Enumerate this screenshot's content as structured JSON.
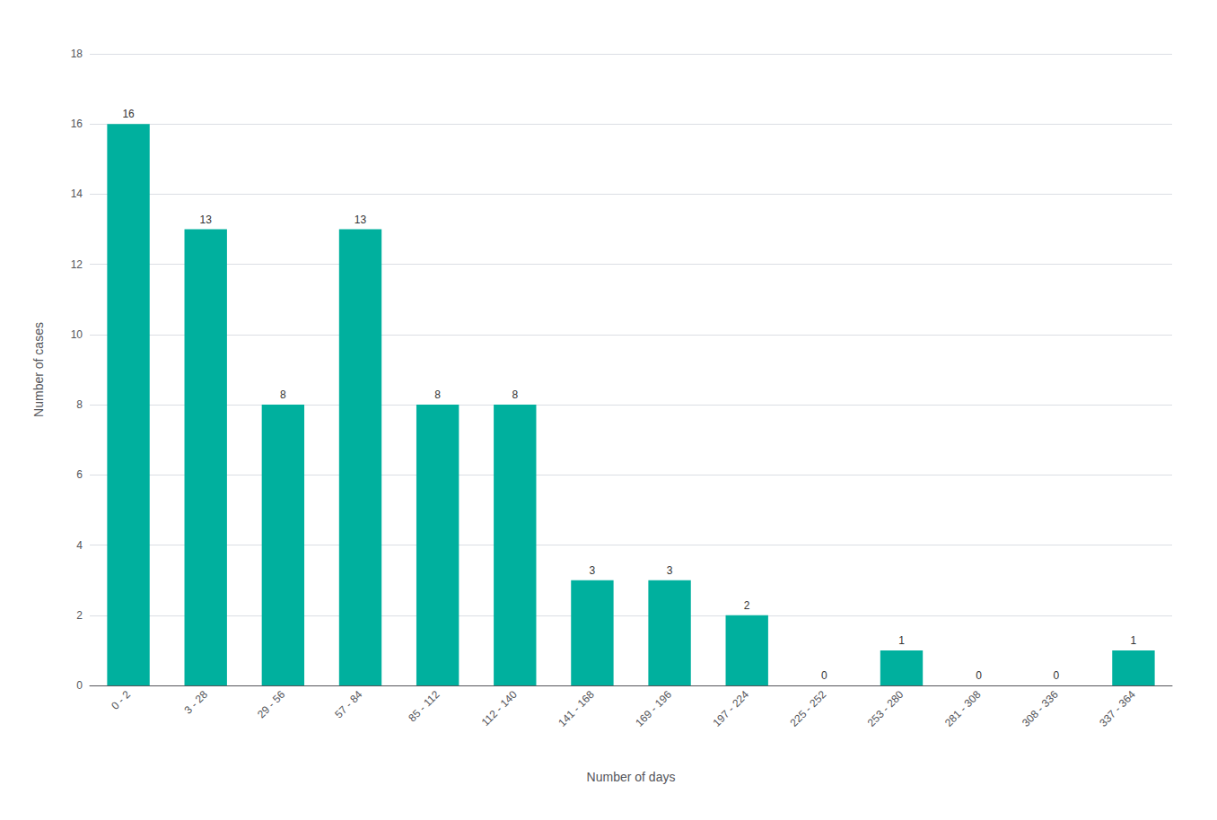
{
  "chart_data": {
    "type": "bar",
    "xlabel": "Number of days",
    "ylabel": "Number of cases",
    "categories": [
      "0 - 2",
      "3 - 28",
      "29 - 56",
      "57 - 84",
      "85 - 112",
      "112 - 140",
      "141 - 168",
      "169 - 196",
      "197 - 224",
      "225 - 252",
      "253 - 280",
      "281 - 308",
      "308 - 336",
      "337 - 364"
    ],
    "values": [
      16,
      13,
      8,
      13,
      8,
      8,
      3,
      3,
      2,
      0,
      1,
      0,
      0,
      1
    ],
    "color": "#00b09e",
    "ylim": [
      0,
      18
    ],
    "yticks": [
      0,
      2,
      4,
      6,
      8,
      10,
      12,
      14,
      16,
      18
    ],
    "grid": true,
    "data_labels": true
  }
}
